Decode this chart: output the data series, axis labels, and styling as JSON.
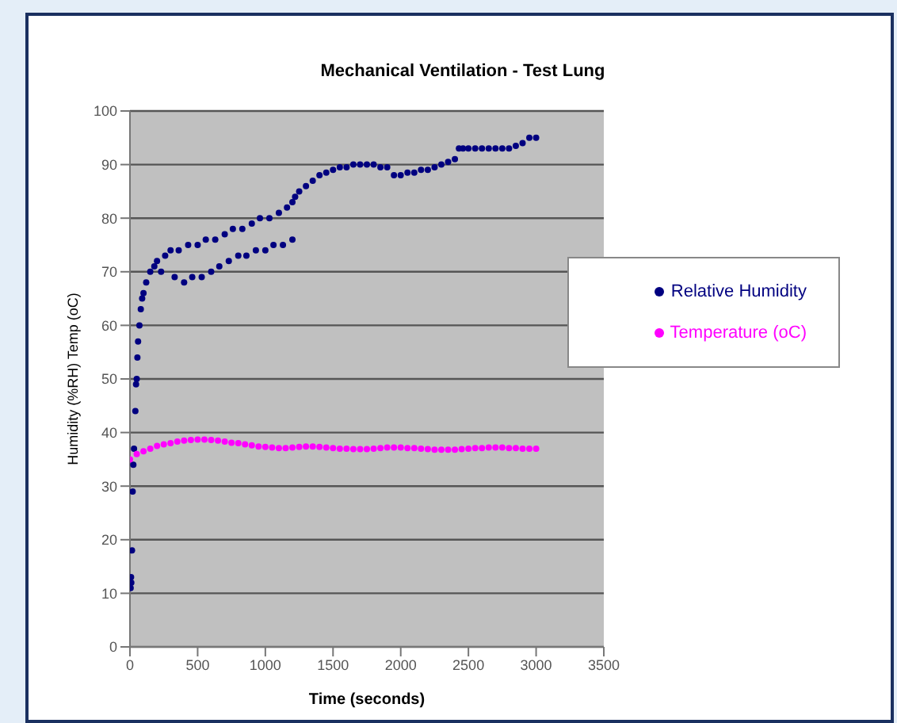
{
  "chart_data": {
    "type": "scatter",
    "title": "Mechanical Ventilation - Test Lung",
    "xlabel": "Time (seconds)",
    "ylabel": "Humidity (%RH) Temp (oC)",
    "xlim": [
      0,
      3500
    ],
    "xticks": [
      0,
      500,
      1000,
      1500,
      2000,
      2500,
      3000,
      3500
    ],
    "ylim": [
      0,
      100
    ],
    "yticks": [
      0,
      10,
      20,
      30,
      40,
      50,
      60,
      70,
      80,
      90,
      100
    ],
    "grid": "y",
    "legend": "right",
    "marker": "circle",
    "series": [
      {
        "name": "Relative Humidity",
        "color": "#000080",
        "x": [
          5,
          8,
          10,
          15,
          20,
          25,
          30,
          40,
          45,
          50,
          55,
          60,
          70,
          80,
          90,
          100,
          120,
          150,
          180,
          200,
          230,
          260,
          300,
          330,
          360,
          400,
          430,
          460,
          500,
          530,
          560,
          600,
          630,
          660,
          700,
          730,
          760,
          800,
          830,
          860,
          900,
          930,
          960,
          1000,
          1030,
          1060,
          1100,
          1130,
          1160,
          1200,
          1200,
          1220,
          1250,
          1300,
          1350,
          1400,
          1450,
          1500,
          1550,
          1600,
          1650,
          1700,
          1750,
          1800,
          1850,
          1900,
          1950,
          2000,
          2050,
          2100,
          2150,
          2200,
          2250,
          2300,
          2350,
          2400,
          2430,
          2460,
          2500,
          2550,
          2600,
          2650,
          2700,
          2750,
          2800,
          2850,
          2900,
          2950,
          3000
        ],
        "values": [
          11,
          13,
          12,
          18,
          29,
          34,
          37,
          44,
          49,
          50,
          54,
          57,
          60,
          63,
          65,
          66,
          68,
          70,
          71,
          72,
          70,
          73,
          74,
          69,
          74,
          68,
          75,
          69,
          75,
          69,
          76,
          70,
          76,
          71,
          77,
          72,
          78,
          73,
          78,
          73,
          79,
          74,
          80,
          74,
          80,
          75,
          81,
          75,
          82,
          76,
          83,
          84,
          85,
          86,
          87,
          88,
          88.5,
          89,
          89.5,
          89.5,
          90,
          90,
          90,
          90,
          89.5,
          89.5,
          88,
          88,
          88.5,
          88.5,
          89,
          89,
          89.5,
          90,
          90.5,
          91,
          93,
          93,
          93,
          93,
          93,
          93,
          93,
          93,
          93,
          93.5,
          94,
          95,
          95
        ]
      },
      {
        "name": "Temperature (oC)",
        "color": "#ff00ff",
        "x": [
          0,
          50,
          100,
          150,
          200,
          250,
          300,
          350,
          400,
          450,
          500,
          550,
          600,
          650,
          700,
          750,
          800,
          850,
          900,
          950,
          1000,
          1050,
          1100,
          1150,
          1200,
          1250,
          1300,
          1350,
          1400,
          1450,
          1500,
          1550,
          1600,
          1650,
          1700,
          1750,
          1800,
          1850,
          1900,
          1950,
          2000,
          2050,
          2100,
          2150,
          2200,
          2250,
          2300,
          2350,
          2400,
          2450,
          2500,
          2550,
          2600,
          2650,
          2700,
          2750,
          2800,
          2850,
          2900,
          2950,
          3000
        ],
        "values": [
          35,
          36,
          36.5,
          37,
          37.5,
          37.8,
          38,
          38.3,
          38.5,
          38.6,
          38.7,
          38.7,
          38.6,
          38.5,
          38.3,
          38.1,
          38,
          37.8,
          37.6,
          37.4,
          37.3,
          37.2,
          37.1,
          37.1,
          37.2,
          37.3,
          37.4,
          37.4,
          37.3,
          37.2,
          37.1,
          37,
          37,
          36.9,
          36.9,
          36.9,
          37,
          37.1,
          37.2,
          37.2,
          37.2,
          37.1,
          37.1,
          37,
          36.9,
          36.8,
          36.8,
          36.8,
          36.8,
          36.9,
          37,
          37.1,
          37.1,
          37.2,
          37.2,
          37.2,
          37.1,
          37.1,
          37,
          37,
          37
        ]
      }
    ]
  }
}
